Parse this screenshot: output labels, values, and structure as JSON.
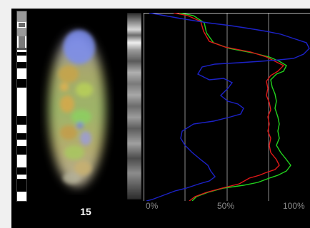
{
  "chromosome": {
    "label": "15"
  },
  "profile": {
    "axis_ticks": [
      "0%",
      "50%",
      "100%"
    ],
    "line_colors": {
      "blue": "#1c22c8",
      "red": "#e01818",
      "green": "#22d41e"
    },
    "gridline_color": "#8c8c8c",
    "border_color": "#e6e6e6"
  },
  "colors": {
    "panel_background": "#000000",
    "page_background": "#f0f0f0"
  }
}
